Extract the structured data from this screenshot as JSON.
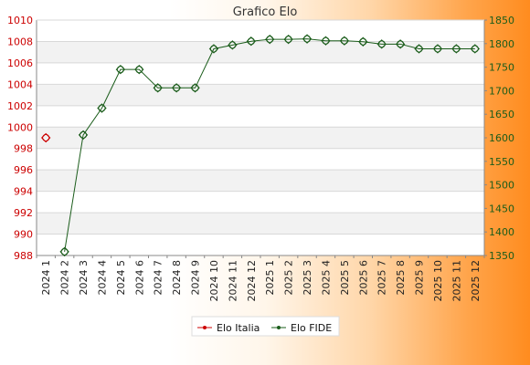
{
  "chart_data": {
    "type": "line",
    "title": "Grafico Elo",
    "categories": [
      "2024 1",
      "2024 2",
      "2024 3",
      "2024 4",
      "2024 5",
      "2024 6",
      "2024 7",
      "2024 8",
      "2024 9",
      "2024 10",
      "2024 11",
      "2024 12",
      "2025 1",
      "2025 2",
      "2025 3",
      "2025 4",
      "2025 5",
      "2025 6",
      "2025 7",
      "2025 8",
      "2025 9",
      "2025 10",
      "2025 11",
      "2025 12"
    ],
    "y_left": {
      "ticks": [
        988,
        990,
        992,
        994,
        996,
        998,
        1000,
        1002,
        1004,
        1006,
        1008,
        1010
      ],
      "range": [
        988,
        1010
      ],
      "color": "#cc0000"
    },
    "y_right": {
      "ticks": [
        1350,
        1400,
        1450,
        1500,
        1550,
        1600,
        1650,
        1700,
        1750,
        1800,
        1850
      ],
      "range": [
        1350,
        1850
      ],
      "color": "#1a5c1a"
    },
    "grid": true,
    "legend_position": "bottom-center",
    "series": [
      {
        "name": "Elo Italia",
        "axis": "left",
        "color": "#cc0000",
        "values": [
          999,
          null,
          null,
          null,
          null,
          null,
          null,
          null,
          null,
          null,
          null,
          null,
          null,
          null,
          null,
          null,
          null,
          null,
          null,
          null,
          null,
          null,
          null,
          null
        ]
      },
      {
        "name": "Elo FIDE",
        "axis": "right",
        "color": "#1a5c1a",
        "values": [
          null,
          1358,
          1606,
          1663,
          1745,
          1745,
          1706,
          1706,
          1706,
          1789,
          1797,
          1805,
          1809,
          1809,
          1810,
          1806,
          1806,
          1804,
          1799,
          1799,
          1789,
          1789,
          1789,
          1789
        ]
      }
    ]
  }
}
